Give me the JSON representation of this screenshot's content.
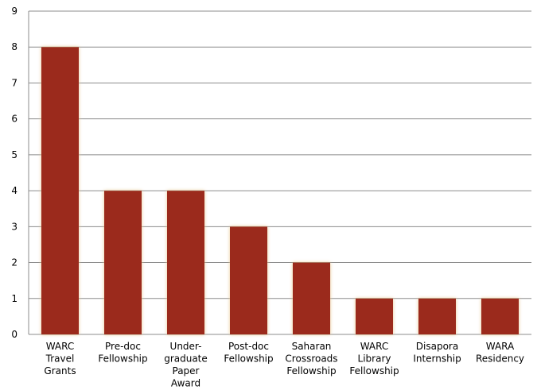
{
  "chart_data": {
    "type": "bar",
    "categories": [
      [
        "WARC",
        "Travel",
        "Grants"
      ],
      [
        "Pre-doc",
        "Fellowship"
      ],
      [
        "Under-",
        "graduate",
        "Paper",
        "Award"
      ],
      [
        "Post-doc",
        "Fellowship"
      ],
      [
        "Saharan",
        "Crossroads",
        "Fellowship"
      ],
      [
        "WARC",
        "Library",
        "Fellowship"
      ],
      [
        "Disapora",
        "Internship"
      ],
      [
        "WARA",
        "Residency"
      ]
    ],
    "values": [
      8,
      4,
      4,
      3,
      2,
      1,
      1,
      1
    ],
    "y_ticks": [
      "0",
      "1",
      "2",
      "3",
      "4",
      "5",
      "6",
      "7",
      "8",
      "9"
    ],
    "ylim": [
      0,
      9
    ],
    "grid": true,
    "legend": "none",
    "title": "",
    "xlabel": "",
    "ylabel": "",
    "colors": {
      "bar": "#9b2a1e",
      "bar_glow": "#e8c890",
      "grid": "#8c8c8c",
      "axis": "#8c8c8c"
    }
  }
}
